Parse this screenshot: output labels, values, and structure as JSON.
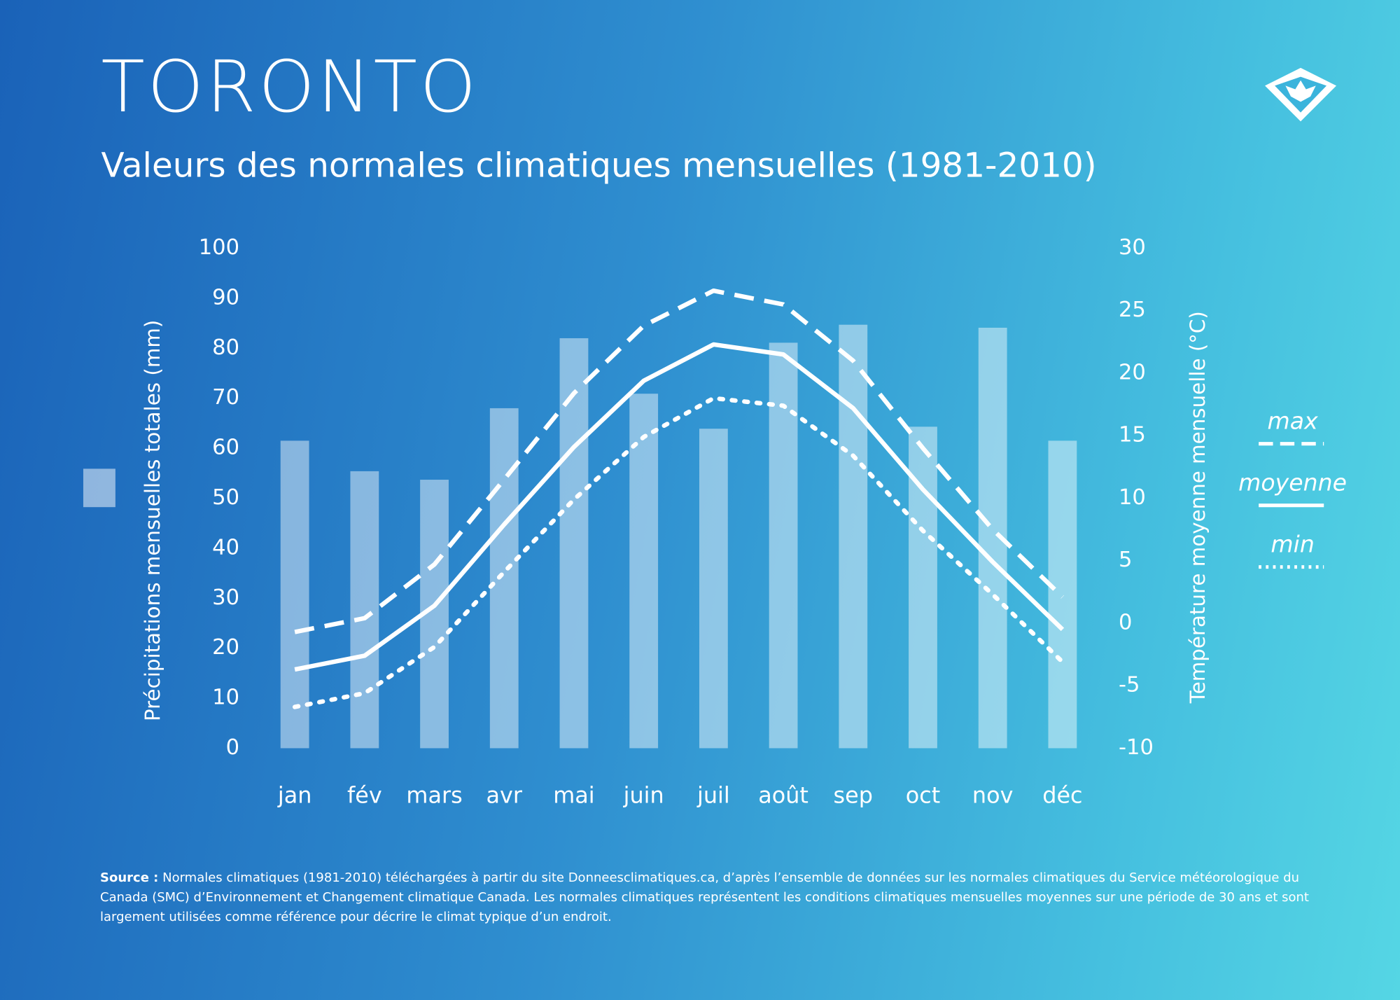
{
  "chart_data": {
    "type": "combo",
    "title": "TORONTO",
    "subtitle": "Valeurs des normales climatiques mensuelles (1981-2010)",
    "y_label": "Précipitations mensuelles totales (mm)",
    "y2_label": "Température moyenne mensuelle (°C)",
    "categories": [
      "jan",
      "fév",
      "mars",
      "avr",
      "mai",
      "juin",
      "juil",
      "août",
      "sep",
      "oct",
      "nov",
      "déc"
    ],
    "ylim": [
      0,
      100
    ],
    "yticks": [
      0,
      10,
      20,
      30,
      40,
      50,
      60,
      70,
      80,
      90,
      100
    ],
    "y2lim": [
      -10,
      30
    ],
    "y2ticks": [
      -10,
      -5,
      0,
      5,
      10,
      15,
      20,
      25,
      30
    ],
    "series": [
      {
        "type": "bar",
        "color": "#ffffff",
        "values": [
          61.5,
          55.4,
          53.7,
          68.0,
          82.0,
          70.9,
          63.9,
          81.1,
          84.7,
          64.3,
          84.1,
          61.5
        ]
      },
      {
        "type": "line",
        "name": "max",
        "style": "dashed",
        "color": "#ffffff",
        "axis": "y2",
        "values": [
          -0.7,
          0.4,
          4.7,
          11.5,
          18.4,
          23.8,
          26.6,
          25.5,
          21.0,
          14.0,
          7.5,
          2.1
        ]
      },
      {
        "type": "line",
        "name": "moyenne",
        "style": "solid",
        "color": "#ffffff",
        "axis": "y2",
        "values": [
          -3.7,
          -2.6,
          1.4,
          7.9,
          14.1,
          19.4,
          22.3,
          21.5,
          17.2,
          10.7,
          4.9,
          -0.5
        ]
      },
      {
        "type": "line",
        "name": "min",
        "style": "dotted",
        "color": "#ffffff",
        "axis": "y2",
        "values": [
          -6.7,
          -5.6,
          -1.9,
          4.1,
          9.9,
          14.9,
          18.0,
          17.4,
          13.4,
          7.4,
          2.3,
          -3.1
        ]
      }
    ],
    "footnote": {
      "label": "Source :",
      "text": "Normales climatiques (1981-2010) téléchargées à partir du site Donneesclimatiques.ca, d’après l’ensemble de données sur les normales climatiques du Service météorologique du Canada (SMC) d’Environnement et Changement climatique Canada. Les normales climatiques représentent les conditions climatiques mensuelles moyennes sur une période de 30 ans et sont largement utilisées comme référence pour décrire le climat typique d’un endroit."
    }
  }
}
